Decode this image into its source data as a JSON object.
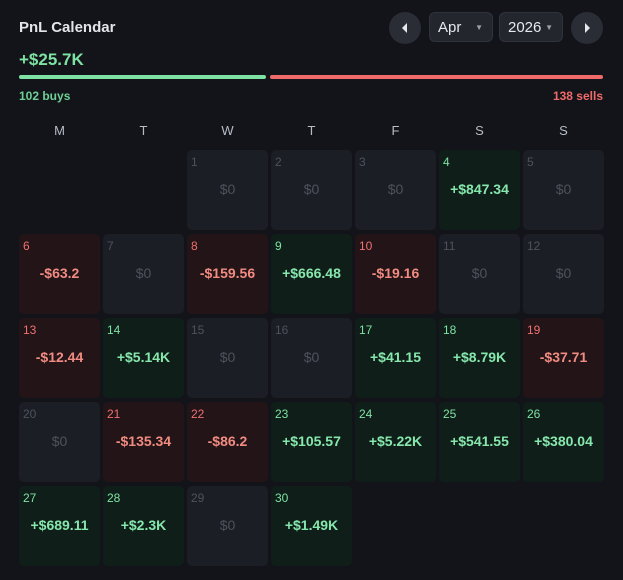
{
  "header": {
    "title": "PnL Calendar",
    "total": "+$25.7K",
    "month": "Apr",
    "year": "2026",
    "prev_icon": "chevron-left-icon",
    "next_icon": "chevron-right-icon"
  },
  "summary": {
    "buys_label": "102 buys",
    "sells_label": "138 sells",
    "buys_count": 102,
    "sells_count": 138,
    "buy_color": "#6fcf97",
    "sell_color": "#f06a6a"
  },
  "weekdays": [
    "M",
    "T",
    "W",
    "T",
    "F",
    "S",
    "S"
  ],
  "days": [
    {
      "day": "1",
      "value": "$0",
      "type": "zero"
    },
    {
      "day": "2",
      "value": "$0",
      "type": "zero"
    },
    {
      "day": "3",
      "value": "$0",
      "type": "zero"
    },
    {
      "day": "4",
      "value": "+$847.34",
      "type": "pos"
    },
    {
      "day": "5",
      "value": "$0",
      "type": "zero"
    },
    {
      "day": "6",
      "value": "-$63.2",
      "type": "neg"
    },
    {
      "day": "7",
      "value": "$0",
      "type": "zero"
    },
    {
      "day": "8",
      "value": "-$159.56",
      "type": "neg"
    },
    {
      "day": "9",
      "value": "+$666.48",
      "type": "pos"
    },
    {
      "day": "10",
      "value": "-$19.16",
      "type": "neg"
    },
    {
      "day": "11",
      "value": "$0",
      "type": "zero"
    },
    {
      "day": "12",
      "value": "$0",
      "type": "zero"
    },
    {
      "day": "13",
      "value": "-$12.44",
      "type": "neg"
    },
    {
      "day": "14",
      "value": "+$5.14K",
      "type": "pos"
    },
    {
      "day": "15",
      "value": "$0",
      "type": "zero"
    },
    {
      "day": "16",
      "value": "$0",
      "type": "zero"
    },
    {
      "day": "17",
      "value": "+$41.15",
      "type": "pos"
    },
    {
      "day": "18",
      "value": "+$8.79K",
      "type": "pos"
    },
    {
      "day": "19",
      "value": "-$37.71",
      "type": "neg"
    },
    {
      "day": "20",
      "value": "$0",
      "type": "zero"
    },
    {
      "day": "21",
      "value": "-$135.34",
      "type": "neg"
    },
    {
      "day": "22",
      "value": "-$86.2",
      "type": "neg"
    },
    {
      "day": "23",
      "value": "+$105.57",
      "type": "pos"
    },
    {
      "day": "24",
      "value": "+$5.22K",
      "type": "pos"
    },
    {
      "day": "25",
      "value": "+$541.55",
      "type": "pos"
    },
    {
      "day": "26",
      "value": "+$380.04",
      "type": "pos"
    },
    {
      "day": "27",
      "value": "+$689.11",
      "type": "pos"
    },
    {
      "day": "28",
      "value": "+$2.3K",
      "type": "pos"
    },
    {
      "day": "29",
      "value": "$0",
      "type": "zero"
    },
    {
      "day": "30",
      "value": "+$1.49K",
      "type": "pos"
    }
  ]
}
